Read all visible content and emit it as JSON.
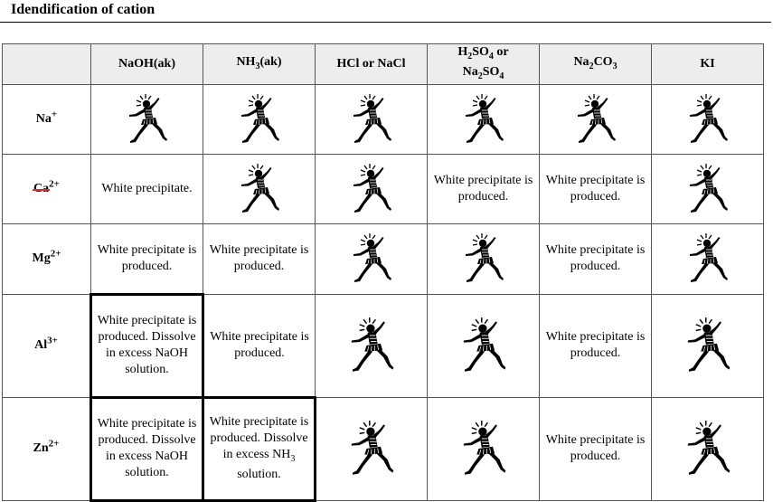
{
  "title": "Idendification of cation",
  "headers": {
    "corner": "",
    "naoh": "NaOH(ak)",
    "nh3_a": "NH",
    "nh3_sub": "3",
    "nh3_b": "(ak)",
    "hcl": "HCl or NaCl",
    "h2so4_a": "H",
    "h2so4_sub1": "2",
    "h2so4_b": "SO",
    "h2so4_sub2": "4",
    "h2so4_c": " or",
    "na2so4_a": "Na",
    "na2so4_sub1": "2",
    "na2so4_b": "SO",
    "na2so4_sub2": "4",
    "na2co3_a": "Na",
    "na2co3_sub1": "2",
    "na2co3_b": "CO",
    "na2co3_sub2": "3",
    "ki": "KI"
  },
  "ions": {
    "na": {
      "symbol": "Na",
      "charge": "+"
    },
    "ca": {
      "symbol": "Ca",
      "charge": "2+"
    },
    "mg": {
      "symbol": "Mg",
      "charge": "2+"
    },
    "al": {
      "symbol": "Al",
      "charge": "3+"
    },
    "zn": {
      "symbol": "Zn",
      "charge": "2+"
    }
  },
  "cells": {
    "ca_naoh": "White precipitate.",
    "ca_h2so4": "White precipitate is produced.",
    "ca_na2co3": "White precipitate is produced.",
    "mg_naoh": "White precipitate is produced.",
    "mg_nh3": "White precipitate is produced.",
    "mg_na2co3": "White precipitate is produced.",
    "al_naoh": "White precipitate is produced. Dissolve in excess NaOH solution.",
    "al_nh3": "White precipitate is produced.",
    "al_na2co3": "White precipitate is produced.",
    "zn_naoh": "White precipitate is produced. Dissolve in excess NaOH solution.",
    "zn_nh3_a": "White precipitate is produced. Dissolve in excess NH",
    "zn_nh3_sub": "3",
    "zn_nh3_b": " solution.",
    "zn_na2co3": "White precipitate is produced."
  },
  "no_reaction_icon": "dancing-figure-icon"
}
